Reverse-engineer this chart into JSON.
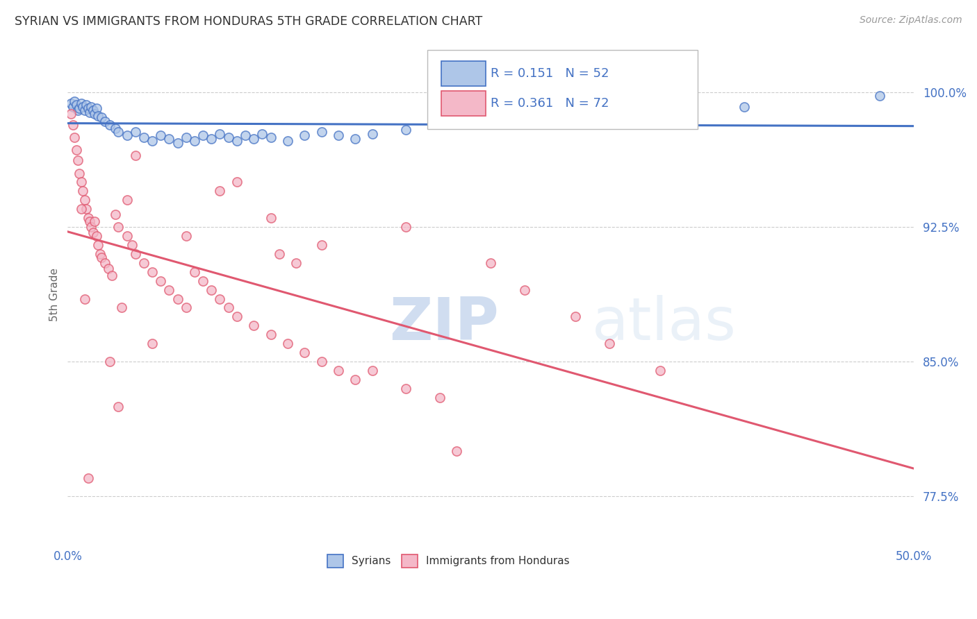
{
  "title": "SYRIAN VS IMMIGRANTS FROM HONDURAS 5TH GRADE CORRELATION CHART",
  "source_text": "Source: ZipAtlas.com",
  "ylabel": "5th Grade",
  "xlim": [
    0.0,
    50.0
  ],
  "ylim": [
    75.0,
    102.5
  ],
  "yticks": [
    77.5,
    85.0,
    92.5,
    100.0
  ],
  "ytick_labels": [
    "77.5%",
    "85.0%",
    "92.5%",
    "100.0%"
  ],
  "legend_syrian_label": "Syrians",
  "legend_honduras_label": "Immigrants from Honduras",
  "R_syrian": 0.151,
  "N_syrian": 52,
  "R_honduras": 0.361,
  "N_honduras": 72,
  "syrian_fill_color": "#aec6e8",
  "honduras_fill_color": "#f4b8c8",
  "syrian_edge_color": "#4472c4",
  "honduras_edge_color": "#e05870",
  "background_color": "#ffffff",
  "title_color": "#333333",
  "axis_label_color": "#666666",
  "tick_color": "#4472c4",
  "grid_color": "#cccccc",
  "watermark_zip": "ZIP",
  "watermark_atlas": "atlas",
  "syrian_scatter": [
    [
      0.2,
      99.4
    ],
    [
      0.3,
      99.2
    ],
    [
      0.4,
      99.5
    ],
    [
      0.5,
      99.3
    ],
    [
      0.6,
      99.0
    ],
    [
      0.7,
      99.1
    ],
    [
      0.8,
      99.4
    ],
    [
      0.9,
      99.2
    ],
    [
      1.0,
      99.0
    ],
    [
      1.1,
      99.3
    ],
    [
      1.2,
      99.1
    ],
    [
      1.3,
      98.9
    ],
    [
      1.4,
      99.2
    ],
    [
      1.5,
      99.0
    ],
    [
      1.6,
      98.8
    ],
    [
      1.7,
      99.1
    ],
    [
      1.8,
      98.7
    ],
    [
      2.0,
      98.6
    ],
    [
      2.2,
      98.4
    ],
    [
      2.5,
      98.2
    ],
    [
      2.8,
      98.0
    ],
    [
      3.0,
      97.8
    ],
    [
      3.5,
      97.6
    ],
    [
      4.0,
      97.8
    ],
    [
      4.5,
      97.5
    ],
    [
      5.0,
      97.3
    ],
    [
      5.5,
      97.6
    ],
    [
      6.0,
      97.4
    ],
    [
      6.5,
      97.2
    ],
    [
      7.0,
      97.5
    ],
    [
      7.5,
      97.3
    ],
    [
      8.0,
      97.6
    ],
    [
      8.5,
      97.4
    ],
    [
      9.0,
      97.7
    ],
    [
      9.5,
      97.5
    ],
    [
      10.0,
      97.3
    ],
    [
      10.5,
      97.6
    ],
    [
      11.0,
      97.4
    ],
    [
      11.5,
      97.7
    ],
    [
      12.0,
      97.5
    ],
    [
      13.0,
      97.3
    ],
    [
      14.0,
      97.6
    ],
    [
      15.0,
      97.8
    ],
    [
      16.0,
      97.6
    ],
    [
      17.0,
      97.4
    ],
    [
      18.0,
      97.7
    ],
    [
      20.0,
      97.9
    ],
    [
      25.0,
      98.3
    ],
    [
      30.0,
      98.6
    ],
    [
      35.0,
      98.9
    ],
    [
      40.0,
      99.2
    ],
    [
      48.0,
      99.8
    ]
  ],
  "honduras_scatter": [
    [
      0.2,
      98.8
    ],
    [
      0.3,
      98.2
    ],
    [
      0.4,
      97.5
    ],
    [
      0.5,
      96.8
    ],
    [
      0.6,
      96.2
    ],
    [
      0.7,
      95.5
    ],
    [
      0.8,
      95.0
    ],
    [
      0.9,
      94.5
    ],
    [
      1.0,
      94.0
    ],
    [
      1.1,
      93.5
    ],
    [
      1.2,
      93.0
    ],
    [
      1.3,
      92.8
    ],
    [
      1.4,
      92.5
    ],
    [
      1.5,
      92.2
    ],
    [
      1.6,
      92.8
    ],
    [
      1.7,
      92.0
    ],
    [
      1.8,
      91.5
    ],
    [
      1.9,
      91.0
    ],
    [
      2.0,
      90.8
    ],
    [
      2.2,
      90.5
    ],
    [
      2.4,
      90.2
    ],
    [
      2.6,
      89.8
    ],
    [
      2.8,
      93.2
    ],
    [
      3.0,
      92.5
    ],
    [
      3.0,
      82.5
    ],
    [
      3.2,
      88.0
    ],
    [
      3.5,
      92.0
    ],
    [
      3.5,
      94.0
    ],
    [
      3.8,
      91.5
    ],
    [
      4.0,
      91.0
    ],
    [
      4.0,
      96.5
    ],
    [
      4.5,
      90.5
    ],
    [
      5.0,
      90.0
    ],
    [
      5.0,
      86.0
    ],
    [
      5.5,
      89.5
    ],
    [
      6.0,
      89.0
    ],
    [
      6.5,
      88.5
    ],
    [
      7.0,
      88.0
    ],
    [
      7.0,
      92.0
    ],
    [
      7.5,
      90.0
    ],
    [
      8.0,
      89.5
    ],
    [
      8.5,
      89.0
    ],
    [
      9.0,
      88.5
    ],
    [
      9.0,
      94.5
    ],
    [
      9.5,
      88.0
    ],
    [
      10.0,
      87.5
    ],
    [
      10.0,
      95.0
    ],
    [
      11.0,
      87.0
    ],
    [
      12.0,
      86.5
    ],
    [
      12.0,
      93.0
    ],
    [
      12.5,
      91.0
    ],
    [
      13.0,
      86.0
    ],
    [
      13.5,
      90.5
    ],
    [
      14.0,
      85.5
    ],
    [
      15.0,
      85.0
    ],
    [
      15.0,
      91.5
    ],
    [
      16.0,
      84.5
    ],
    [
      17.0,
      84.0
    ],
    [
      18.0,
      84.5
    ],
    [
      20.0,
      83.5
    ],
    [
      20.0,
      92.5
    ],
    [
      22.0,
      83.0
    ],
    [
      23.0,
      80.0
    ],
    [
      25.0,
      90.5
    ],
    [
      27.0,
      89.0
    ],
    [
      30.0,
      87.5
    ],
    [
      32.0,
      86.0
    ],
    [
      35.0,
      84.5
    ],
    [
      2.5,
      85.0
    ],
    [
      1.2,
      78.5
    ],
    [
      0.8,
      93.5
    ],
    [
      1.0,
      88.5
    ]
  ]
}
